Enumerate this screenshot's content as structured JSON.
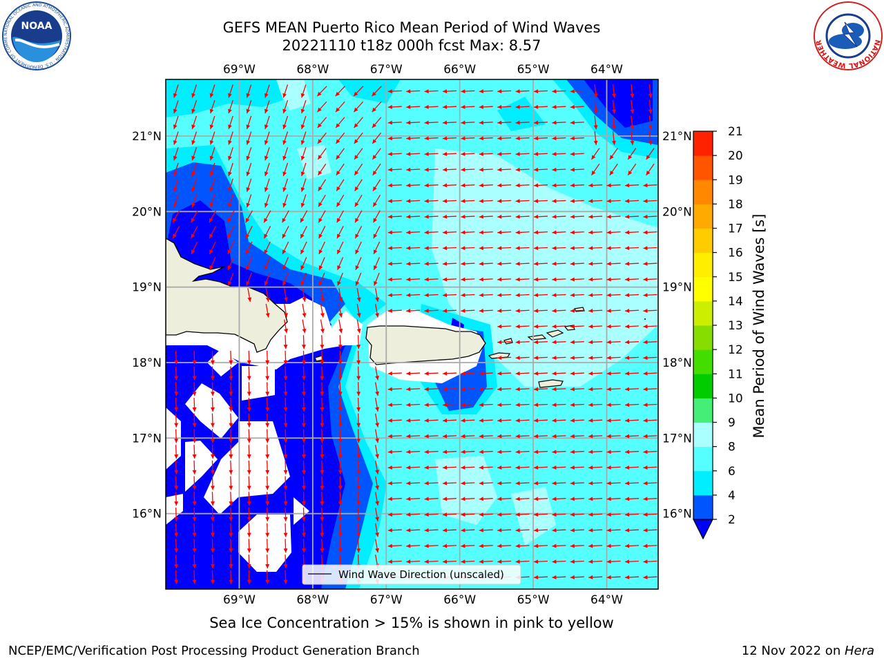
{
  "header": {
    "title_line1": "GEFS MEAN Puerto Rico Mean Period of Wind Waves",
    "title_line2": "20221110 t18z 000h fcst   Max: 8.57"
  },
  "logos": {
    "left": "noaa-logo",
    "right": "nws-logo",
    "left_text": "NOAA",
    "left_ring_text": "NATIONAL OCEANIC AND ATMOSPHERIC ADMINISTRATION · U.S. DEPARTMENT OF COMMERCE",
    "right_ring_text": "NATIONAL WEATHER SERVICE"
  },
  "map": {
    "lon_ticks": [
      "69°W",
      "68°W",
      "67°W",
      "66°W",
      "65°W",
      "64°W"
    ],
    "lat_ticks": [
      "21°N",
      "20°N",
      "19°N",
      "18°N",
      "17°N",
      "16°N"
    ],
    "lon_range": [
      -70.0,
      -63.3
    ],
    "lat_range": [
      15.0,
      21.75
    ],
    "arrow_color": "#ff0000",
    "land_color": "#eeeedd",
    "legend_label": "Wind Wave Direction (unscaled)"
  },
  "colorbar": {
    "label": "Mean Period of Wind Waves [s]",
    "ticks": [
      "2",
      "4",
      "6",
      "8",
      "9",
      "10",
      "11",
      "12",
      "13",
      "14",
      "15",
      "16",
      "17",
      "18",
      "19",
      "20",
      "21"
    ],
    "colors": [
      "#0055ff",
      "#00eeff",
      "#55ffff",
      "#aaffff",
      "#44ee77",
      "#00cc00",
      "#44dd00",
      "#88dd00",
      "#ccee00",
      "#ffff00",
      "#ffee00",
      "#ffcc00",
      "#ffaa00",
      "#ff8800",
      "#ff5500",
      "#ff2200"
    ],
    "under_color": "#0000ff"
  },
  "subtitle": "Sea Ice Concentration > 15% is shown in pink to yellow",
  "footer": {
    "left": "NCEP/EMC/Verification Post Processing Product Generation Branch",
    "date": "12 Nov 2022 on ",
    "machine": "Hera"
  }
}
